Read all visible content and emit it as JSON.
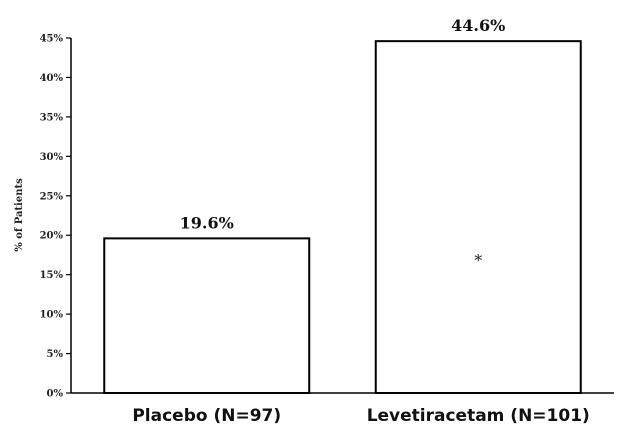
{
  "chart_data": {
    "type": "bar",
    "categories": [
      "Placebo (N=97)",
      "Levetiracetam (N=101)"
    ],
    "values": [
      19.6,
      44.6
    ],
    "data_labels": [
      "19.6%",
      "44.6%"
    ],
    "title": "",
    "xlabel": "",
    "ylabel": "% of Patients",
    "ylim": [
      0,
      45
    ],
    "yticks": [
      "0%",
      "5%",
      "10%",
      "15%",
      "20%",
      "25%",
      "30%",
      "35%",
      "40%",
      "45%"
    ],
    "annotations": [
      {
        "category": "Levetiracetam (N=101)",
        "text": "*"
      }
    ],
    "bar_fill": "#ffffff",
    "bar_stroke": "#000000",
    "grid": false
  }
}
